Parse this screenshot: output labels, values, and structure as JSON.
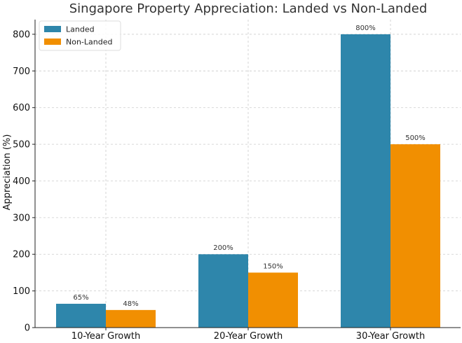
{
  "chart_data": {
    "type": "bar",
    "title": "Singapore Property Appreciation: Landed vs Non-Landed",
    "xlabel": "",
    "ylabel": "Appreciation (%)",
    "categories": [
      "10-Year Growth",
      "20-Year Growth",
      "30-Year Growth"
    ],
    "series": [
      {
        "name": "Landed",
        "values": [
          65,
          200,
          800
        ],
        "labels": [
          "65%",
          "200%",
          "800%"
        ],
        "color": "#2e86ab"
      },
      {
        "name": "Non-Landed",
        "values": [
          48,
          150,
          500
        ],
        "labels": [
          "48%",
          "150%",
          "500%"
        ],
        "color": "#f18f01"
      }
    ],
    "ylim": [
      0,
      840
    ],
    "yticks": [
      0,
      100,
      200,
      300,
      400,
      500,
      600,
      700,
      800
    ],
    "grid": true,
    "legend_position": "top-left"
  }
}
